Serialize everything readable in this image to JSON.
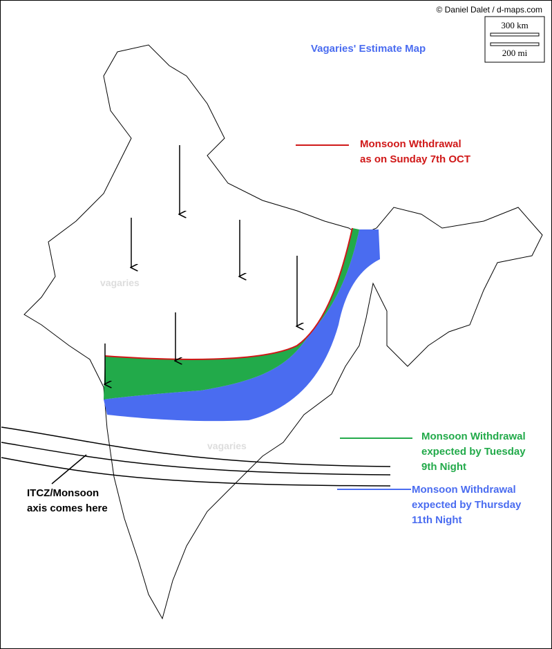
{
  "header": {
    "credit": "© Daniel Dalet / d-maps.com",
    "scale_km": "300 km",
    "scale_mi": "200 mi",
    "title": "Vagaries' Estimate Map"
  },
  "legend": [
    {
      "lines": [
        "Monsoon Wthdrawal",
        "as on Sunday 7th OCT"
      ]
    },
    {
      "lines": [
        "Monsoon Withdrawal",
        "expected by Tuesday",
        "9th Night"
      ]
    },
    {
      "lines": [
        "Monsoon Withdrawal",
        "expected by Thursday",
        "11th Night"
      ]
    }
  ],
  "annotation": {
    "lines": [
      "ITCZ/Monsoon",
      "axis comes here"
    ]
  },
  "watermarks": [
    "vagaries",
    "vagaries"
  ]
}
